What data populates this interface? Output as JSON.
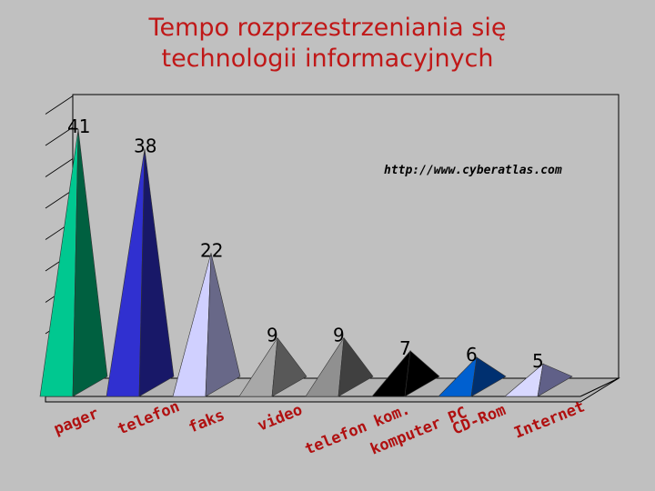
{
  "chart_data": {
    "type": "bar",
    "title_lines": [
      "Tempo rozprzestrzeniania się",
      "technologii informacyjnych"
    ],
    "source": "http://www.cyberatlas.com",
    "categories": [
      "pager",
      "telefon",
      "faks",
      "video",
      "telefon kom.",
      "komputer PC",
      "CD-Rom",
      "Internet"
    ],
    "values": [
      41,
      38,
      22,
      9,
      9,
      7,
      6,
      5
    ],
    "ylim": [
      0,
      45
    ],
    "grid": true,
    "legend": "none",
    "colors": [
      {
        "left": "#00c890",
        "right": "#006040"
      },
      {
        "left": "#3030d0",
        "right": "#181868"
      },
      {
        "left": "#d0d0ff",
        "right": "#686888"
      },
      {
        "left": "#a8a8a8",
        "right": "#585858"
      },
      {
        "left": "#909090",
        "right": "#404040"
      },
      {
        "left": "#000000",
        "right": "#000000"
      },
      {
        "left": "#0060d0",
        "right": "#003070"
      },
      {
        "left": "#d8d8ff",
        "right": "#606088"
      }
    ]
  }
}
